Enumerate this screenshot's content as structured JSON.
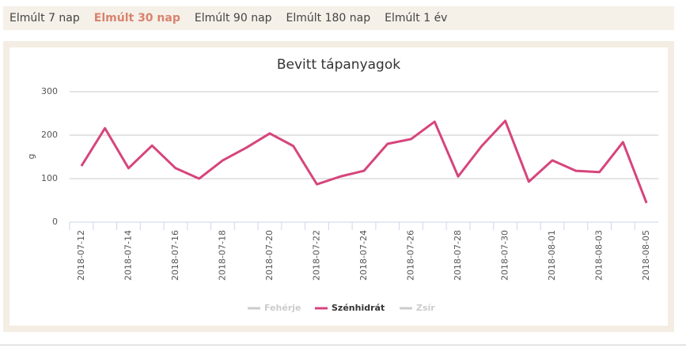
{
  "tabs": [
    {
      "label": "Elmúlt 7 nap",
      "active": false
    },
    {
      "label": "Elmúlt 30 nap",
      "active": true
    },
    {
      "label": "Elmúlt 90 nap",
      "active": false
    },
    {
      "label": "Elmúlt 180 nap",
      "active": false
    },
    {
      "label": "Elmúlt 1 év",
      "active": false
    }
  ],
  "chart_data": {
    "type": "line",
    "title": "Bevitt tápanyagok",
    "y_label": "g",
    "categories": [
      "2018-07-12",
      null,
      "2018-07-14",
      null,
      "2018-07-16",
      null,
      "2018-07-18",
      null,
      "2018-07-20",
      null,
      "2018-07-22",
      null,
      "2018-07-24",
      null,
      "2018-07-26",
      null,
      "2018-07-28",
      null,
      "2018-07-30",
      null,
      "2018-08-01",
      null,
      "2018-08-03",
      null,
      "2018-08-05"
    ],
    "series": [
      {
        "name": "Fehérje",
        "color": "#cccccc",
        "visible": false
      },
      {
        "name": "Szénhidrát",
        "color": "#d6457c",
        "visible": true,
        "values": [
          129,
          216,
          124,
          176,
          124,
          100,
          142,
          171,
          204,
          175,
          87,
          105,
          118,
          180,
          191,
          231,
          105,
          175,
          233,
          93,
          142,
          118,
          115,
          184,
          44
        ]
      },
      {
        "name": "Zsír",
        "color": "#cccccc",
        "visible": false
      }
    ],
    "ylim": [
      0,
      300
    ],
    "yticks": [
      0,
      100,
      200,
      300
    ],
    "grid": true
  }
}
